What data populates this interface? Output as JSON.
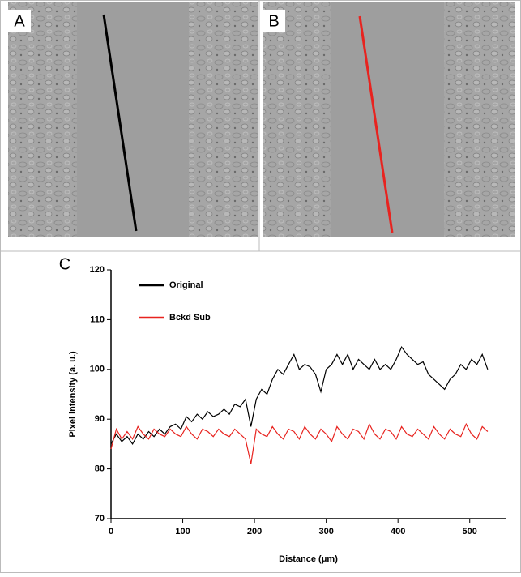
{
  "panels": [
    {
      "label": "A"
    },
    {
      "label": "B"
    }
  ],
  "chart_data": {
    "type": "line",
    "panel_label": "C",
    "x_label": "Distance  (μm)",
    "y_label": "Pixel intensity (a. u.)",
    "x": [
      0,
      7.5,
      15,
      22.5,
      30,
      37.5,
      45,
      52.5,
      60,
      67.5,
      75,
      82.5,
      90,
      97.5,
      105,
      112.5,
      120,
      127.5,
      135,
      142.5,
      150,
      157.5,
      165,
      172.5,
      180,
      187.5,
      195,
      202.5,
      210,
      217.5,
      225,
      232.5,
      240,
      247.5,
      255,
      262.5,
      270,
      277.5,
      285,
      292.5,
      300,
      307.5,
      315,
      322.5,
      330,
      337.5,
      345,
      352.5,
      360,
      367.5,
      375,
      382.5,
      390,
      397.5,
      405,
      412.5,
      420,
      427.5,
      435,
      442.5,
      450,
      457.5,
      465,
      472.5,
      480,
      487.5,
      495,
      502.5,
      510,
      517.5,
      525
    ],
    "series": [
      {
        "name": "Original",
        "color": "#000000",
        "values": [
          85,
          87,
          85.5,
          86.5,
          85,
          87,
          86,
          87.5,
          86.5,
          88,
          87,
          88.5,
          89,
          88,
          90.5,
          89.5,
          91,
          90,
          91.5,
          90.5,
          91,
          92,
          91,
          93,
          92.5,
          94,
          88.5,
          94,
          96,
          95,
          98,
          100,
          99,
          101,
          103,
          100,
          101,
          100.5,
          99,
          95.5,
          100,
          101,
          103,
          101,
          103,
          100,
          102,
          101,
          100,
          102,
          100,
          101,
          100,
          102,
          104.5,
          103,
          102,
          101,
          101.5,
          99,
          98,
          97,
          96,
          98,
          99,
          101,
          100,
          102,
          101,
          103,
          100
        ]
      },
      {
        "name": "Bckd Sub",
        "color": "#e8231f",
        "values": [
          84,
          88,
          86,
          87.5,
          86,
          88.5,
          87,
          86,
          88,
          87,
          86.5,
          88,
          87,
          86.5,
          88.5,
          87,
          86,
          88,
          87.5,
          86.5,
          88,
          87,
          86.5,
          88,
          87,
          86,
          81,
          88,
          87,
          86.5,
          88.5,
          87,
          86,
          88,
          87.5,
          86,
          88.5,
          87,
          86,
          88,
          87,
          85.5,
          88.5,
          87,
          86,
          88,
          87.5,
          86,
          89,
          87,
          86,
          88,
          87.5,
          86,
          88.5,
          87,
          86.5,
          88,
          87,
          86,
          88.5,
          87,
          86,
          88,
          87,
          86.5,
          89,
          87,
          86,
          88.5,
          87.5
        ]
      }
    ],
    "xlim": [
      0,
      550
    ],
    "xticks": [
      0,
      100,
      200,
      300,
      400,
      500
    ],
    "ylim": [
      70,
      120
    ],
    "yticks": [
      70,
      80,
      90,
      100,
      110,
      120
    ],
    "legend": "upper left",
    "grid": false
  }
}
